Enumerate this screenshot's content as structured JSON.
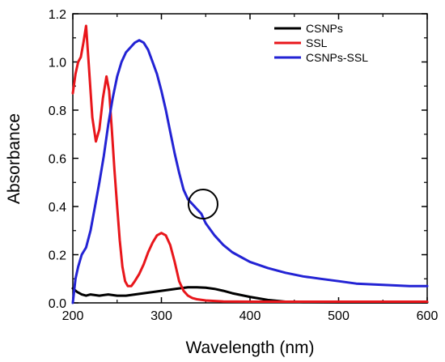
{
  "chart_data": {
    "type": "line",
    "title": "",
    "xlabel": "Wavelength (nm)",
    "ylabel": "Absorbance",
    "xlim": [
      200,
      600
    ],
    "ylim": [
      0.0,
      1.2
    ],
    "xticks": [
      200,
      300,
      400,
      500,
      600
    ],
    "yticks": [
      0.0,
      0.2,
      0.4,
      0.6,
      0.8,
      1.0,
      1.2
    ],
    "xtick_labels": [
      "200",
      "300",
      "400",
      "500",
      "600"
    ],
    "ytick_labels": [
      "0.0",
      "0.2",
      "0.4",
      "0.6",
      "0.8",
      "1.0",
      "1.2"
    ],
    "grid": false,
    "legend_position": "top-right",
    "series": [
      {
        "name": "CSNPs",
        "color": "#000000",
        "x": [
          200,
          205,
          210,
          215,
          220,
          230,
          240,
          250,
          260,
          270,
          280,
          290,
          300,
          310,
          320,
          330,
          340,
          350,
          360,
          370,
          380,
          400,
          420,
          440,
          460,
          500,
          550,
          600
        ],
        "y": [
          0.06,
          0.045,
          0.035,
          0.03,
          0.035,
          0.03,
          0.035,
          0.03,
          0.03,
          0.035,
          0.04,
          0.045,
          0.05,
          0.055,
          0.06,
          0.065,
          0.065,
          0.063,
          0.058,
          0.05,
          0.04,
          0.025,
          0.012,
          0.005,
          0.003,
          0.002,
          0.002,
          0.002
        ]
      },
      {
        "name": "SSL",
        "color": "#e8161b",
        "x": [
          200,
          203,
          206,
          209,
          212,
          215,
          218,
          222,
          226,
          230,
          234,
          238,
          241,
          244,
          247,
          250,
          253,
          256,
          259,
          262,
          266,
          270,
          275,
          280,
          285,
          290,
          295,
          300,
          305,
          310,
          315,
          320,
          325,
          330,
          335,
          340,
          350,
          360,
          370,
          400,
          450,
          500,
          550,
          600
        ],
        "y": [
          0.87,
          0.95,
          1.0,
          1.02,
          1.08,
          1.15,
          0.99,
          0.77,
          0.67,
          0.72,
          0.85,
          0.94,
          0.88,
          0.72,
          0.55,
          0.4,
          0.26,
          0.15,
          0.09,
          0.07,
          0.07,
          0.09,
          0.12,
          0.16,
          0.21,
          0.25,
          0.28,
          0.29,
          0.28,
          0.24,
          0.17,
          0.09,
          0.05,
          0.03,
          0.02,
          0.015,
          0.01,
          0.008,
          0.006,
          0.005,
          0.005,
          0.005,
          0.005,
          0.005
        ]
      },
      {
        "name": "CSNPs-SSL",
        "color": "#2323d4",
        "x": [
          200,
          203,
          206,
          210,
          215,
          220,
          225,
          230,
          235,
          240,
          245,
          250,
          255,
          260,
          265,
          270,
          275,
          280,
          285,
          290,
          295,
          300,
          305,
          310,
          315,
          320,
          325,
          330,
          335,
          340,
          345,
          350,
          360,
          370,
          380,
          390,
          400,
          420,
          440,
          460,
          480,
          500,
          520,
          550,
          580,
          600
        ],
        "y": [
          0.0,
          0.1,
          0.15,
          0.2,
          0.23,
          0.3,
          0.4,
          0.5,
          0.61,
          0.74,
          0.85,
          0.94,
          1.0,
          1.04,
          1.06,
          1.08,
          1.09,
          1.08,
          1.05,
          1.0,
          0.95,
          0.88,
          0.8,
          0.71,
          0.62,
          0.54,
          0.47,
          0.43,
          0.41,
          0.39,
          0.37,
          0.33,
          0.28,
          0.24,
          0.21,
          0.19,
          0.17,
          0.145,
          0.125,
          0.11,
          0.1,
          0.09,
          0.08,
          0.075,
          0.07,
          0.07
        ]
      }
    ],
    "annotations": [
      {
        "type": "circle",
        "x": 347,
        "y": 0.41
      }
    ]
  }
}
